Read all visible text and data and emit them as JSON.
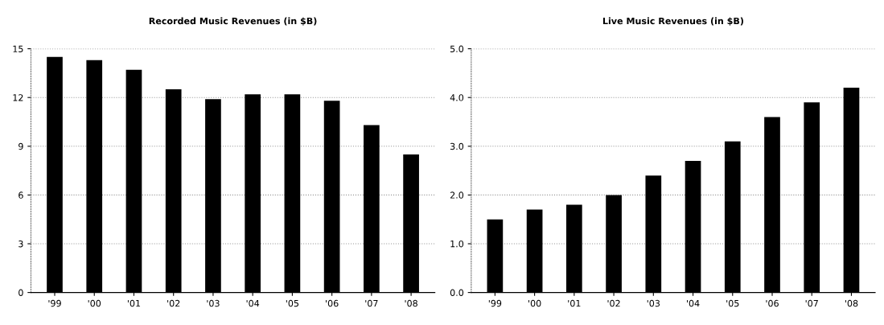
{
  "chart_data": [
    {
      "type": "bar",
      "title": "Recorded Music Revenues (in $B)",
      "categories": [
        "'99",
        "'00",
        "'01",
        "'02",
        "'03",
        "'04",
        "'05",
        "'06",
        "'07",
        "'08"
      ],
      "values": [
        14.5,
        14.3,
        13.7,
        12.5,
        11.9,
        12.2,
        12.2,
        11.8,
        10.3,
        8.5
      ],
      "color": "#000000",
      "ylim": [
        0,
        15
      ],
      "yticks": [
        0,
        3,
        6,
        9,
        12,
        15
      ],
      "grid": "y"
    },
    {
      "type": "bar",
      "title": "Live Music Revenues (in $B)",
      "categories": [
        "'99",
        "'00",
        "'01",
        "'02",
        "'03",
        "'04",
        "'05",
        "'06",
        "'07",
        "'08"
      ],
      "values": [
        1.5,
        1.7,
        1.8,
        2.0,
        2.4,
        2.7,
        3.1,
        3.6,
        3.9,
        4.2
      ],
      "color": "#000000",
      "ylim": [
        0,
        5
      ],
      "yticks": [
        {
          "value": 0,
          "label": "0.0"
        },
        {
          "value": 1,
          "label": "1.0"
        },
        {
          "value": 2,
          "label": "2.0"
        },
        {
          "value": 3,
          "label": "3.0"
        },
        {
          "value": 4,
          "label": "4.0"
        },
        {
          "value": 5,
          "label": "5.0"
        }
      ],
      "grid": "y"
    }
  ]
}
